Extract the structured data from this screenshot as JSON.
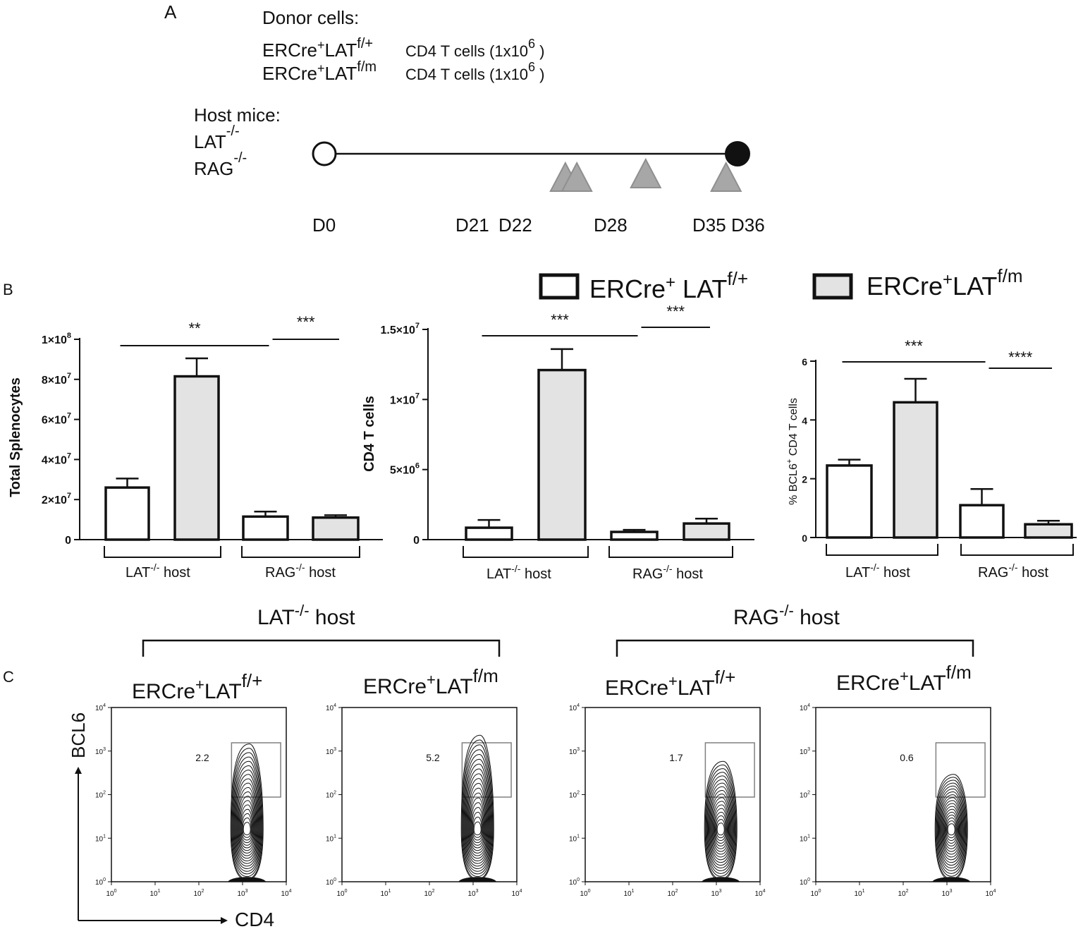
{
  "panel_letters": {
    "a": "A",
    "b": "B",
    "c": "C"
  },
  "panel_a": {
    "donor_title": "Donor cells:",
    "donor_lines": [
      {
        "genotype": "ERCre",
        "sup1": "+",
        "mid": "LAT",
        "sup2": "f/+",
        "desc": "CD4 T cells (1x10",
        "exp": "6",
        "close": " )"
      },
      {
        "genotype": "ERCre",
        "sup1": "+",
        "mid": "LAT",
        "sup2": "f/m",
        "desc": "CD4 T cells (1x10",
        "exp": "6",
        "close": " )"
      }
    ],
    "host_title": "Host mice:",
    "hosts": [
      {
        "name": "LAT",
        "sup": "-/-"
      },
      {
        "name": "RAG",
        "sup": "-/-"
      }
    ],
    "timeline": {
      "days_total": 36,
      "start_label": "D0",
      "end_label": "D36",
      "injection_days": [
        21,
        22,
        28,
        35
      ],
      "labels": [
        {
          "day": 0,
          "text": "D0"
        },
        {
          "day": 21,
          "text": "D21"
        },
        {
          "day": 22,
          "text": "D22"
        },
        {
          "day": 28,
          "text": "D28"
        },
        {
          "day": 35,
          "text": "D35"
        },
        {
          "day": 36,
          "text": "D36"
        }
      ]
    }
  },
  "legend": [
    {
      "base": "ERCre",
      "sup1": "+",
      "mid": " LAT",
      "sup2": "f/+",
      "fill": "#ffffff"
    },
    {
      "base": "ERCre",
      "sup1": "+",
      "mid": "LAT",
      "sup2": "f/m",
      "fill": "#e3e3e3"
    }
  ],
  "colors": {
    "open_bar": "#ffffff",
    "grey_bar": "#e3e3e3",
    "stroke": "#111111",
    "gate": "#808080"
  },
  "chart_data": [
    {
      "type": "bar",
      "ylabel": "Total Splenocytes",
      "ylim": [
        0,
        100000000
      ],
      "yticks": [
        {
          "value": 0,
          "label": "0",
          "exp": ""
        },
        {
          "value": 20000000,
          "label": "2×10",
          "exp": "7"
        },
        {
          "value": 40000000,
          "label": "4×10",
          "exp": "7"
        },
        {
          "value": 60000000,
          "label": "6×10",
          "exp": "7"
        },
        {
          "value": 80000000,
          "label": "8×10",
          "exp": "7"
        },
        {
          "value": 100000000,
          "label": "1×10",
          "exp": "8"
        }
      ],
      "groups": [
        {
          "name": "LAT",
          "sup": "-/-",
          "suffix": " host"
        },
        {
          "name": "RAG",
          "sup": "-/-",
          "suffix": " host"
        }
      ],
      "series": [
        {
          "name": "ERCre+ LAT f/+",
          "values": [
            26000000,
            11500000
          ],
          "errors": [
            4500000,
            2500000
          ]
        },
        {
          "name": "ERCre+LATf/m",
          "values": [
            81500000,
            11000000
          ],
          "errors": [
            9000000,
            1200000
          ]
        }
      ],
      "significance": [
        {
          "text": "**",
          "from": [
            0,
            0
          ],
          "to": [
            0,
            1
          ]
        },
        {
          "text": "***",
          "from": [
            0,
            1
          ],
          "to": [
            1,
            1
          ]
        }
      ]
    },
    {
      "type": "bar",
      "ylabel": "CD4 T cells",
      "ylim": [
        0,
        15000000
      ],
      "yticks": [
        {
          "value": 0,
          "label": "0",
          "exp": ""
        },
        {
          "value": 5000000,
          "label": "5×10",
          "exp": "6"
        },
        {
          "value": 10000000,
          "label": "1×10",
          "exp": "7"
        },
        {
          "value": 15000000,
          "label": "1.5×10",
          "exp": "7"
        }
      ],
      "groups": [
        {
          "name": "LAT",
          "sup": "-/-",
          "suffix": " host"
        },
        {
          "name": "RAG",
          "sup": "-/-",
          "suffix": " host"
        }
      ],
      "series": [
        {
          "name": "ERCre+ LAT f/+",
          "values": [
            850000,
            550000
          ],
          "errors": [
            550000,
            150000
          ]
        },
        {
          "name": "ERCre+LATf/m",
          "values": [
            12100000,
            1150000
          ],
          "errors": [
            1500000,
            350000
          ]
        }
      ],
      "significance": [
        {
          "text": "***",
          "from": [
            0,
            0
          ],
          "to": [
            0,
            1
          ]
        },
        {
          "text": "***",
          "from": [
            0,
            1
          ],
          "to": [
            1,
            1
          ]
        }
      ]
    },
    {
      "type": "bar",
      "ylabel": "% BCL6+ CD4 T cells",
      "ylim": [
        0,
        6
      ],
      "yticks": [
        {
          "value": 0,
          "label": "0",
          "exp": ""
        },
        {
          "value": 2,
          "label": "2",
          "exp": ""
        },
        {
          "value": 4,
          "label": "4",
          "exp": ""
        },
        {
          "value": 6,
          "label": "6",
          "exp": ""
        }
      ],
      "groups": [
        {
          "name": "LAT",
          "sup": "-/-",
          "suffix": " host"
        },
        {
          "name": "RAG",
          "sup": "-/-",
          "suffix": " host"
        }
      ],
      "series": [
        {
          "name": "ERCre+ LAT f/+",
          "values": [
            2.45,
            1.1
          ],
          "errors": [
            0.2,
            0.55
          ]
        },
        {
          "name": "ERCre+LATf/m",
          "values": [
            4.6,
            0.45
          ],
          "errors": [
            0.8,
            0.12
          ]
        }
      ],
      "significance": [
        {
          "text": "***",
          "from": [
            0,
            0
          ],
          "to": [
            0,
            1
          ]
        },
        {
          "text": "****",
          "from": [
            0,
            1
          ],
          "to": [
            1,
            1
          ]
        }
      ]
    }
  ],
  "panel_c": {
    "x_label": "CD4",
    "y_label": "BCL6",
    "host_groups": [
      {
        "name": "LAT",
        "sup": "-/-",
        "suffix": " host"
      },
      {
        "name": "RAG",
        "sup": "-/-",
        "suffix": " host"
      }
    ],
    "axis_ticks": [
      "10",
      "10",
      "10",
      "10",
      "10"
    ],
    "axis_tick_exps": [
      "0",
      "1",
      "2",
      "3",
      "4"
    ],
    "plots": [
      {
        "title_base": "ERCre",
        "title_sup1": "+",
        "title_mid": "LAT",
        "title_sup2": "f/+",
        "gate_value": "2.2",
        "blob_rows": 19,
        "blob_reach": 3.1
      },
      {
        "title_base": "ERCre",
        "title_sup1": "+",
        "title_mid": "LAT",
        "title_sup2": "f/m",
        "gate_value": "5.2",
        "blob_rows": 19,
        "blob_reach": 3.3
      },
      {
        "title_base": "ERCre",
        "title_sup1": "+",
        "title_mid": "LAT",
        "title_sup2": "f/+",
        "gate_value": "1.7",
        "blob_rows": 18,
        "blob_reach": 2.7
      },
      {
        "title_base": "ERCre",
        "title_sup1": "+",
        "title_mid": "LAT",
        "title_sup2": "f/m",
        "gate_value": "0.6",
        "blob_rows": 18,
        "blob_reach": 2.4
      }
    ]
  }
}
